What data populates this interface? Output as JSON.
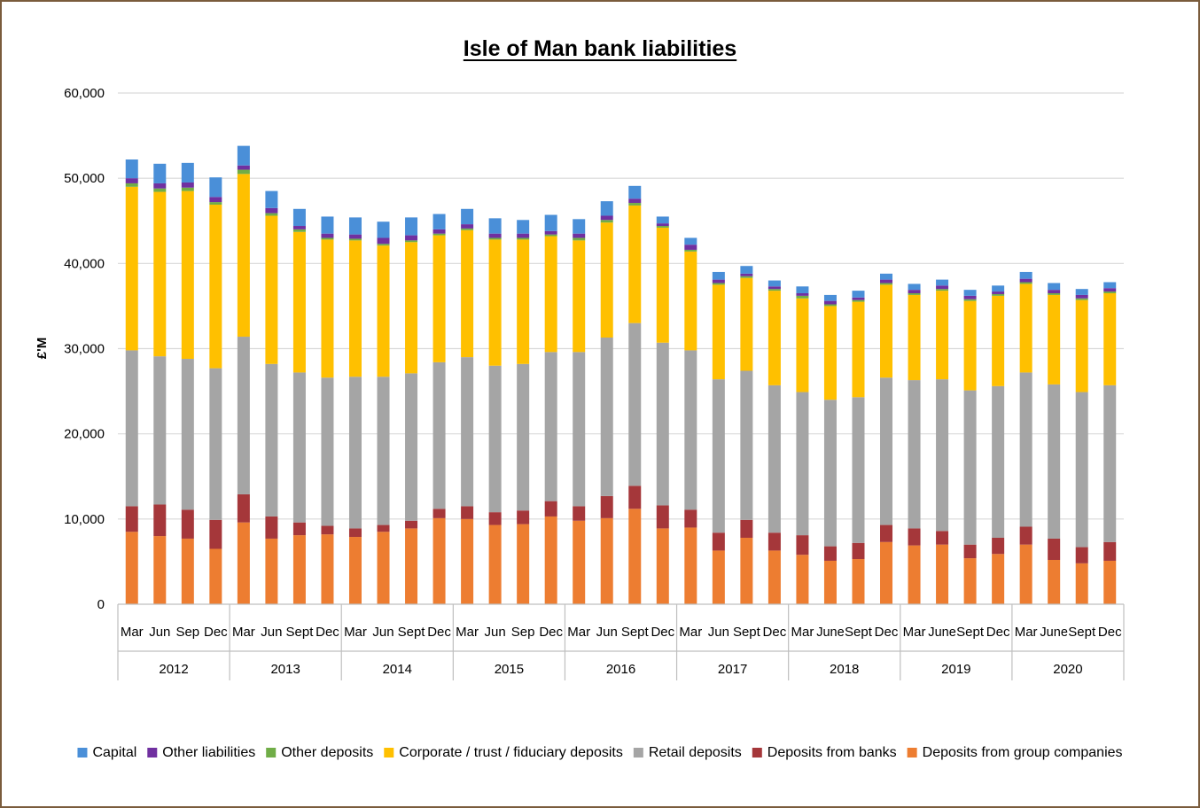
{
  "chart_data": {
    "type": "bar",
    "stacked": true,
    "title": "Isle of Man bank liabilities",
    "ylabel": "£'M",
    "xlabel": "",
    "ylim": [
      0,
      60000
    ],
    "yticks": [
      0,
      10000,
      20000,
      30000,
      40000,
      50000,
      60000
    ],
    "ytick_labels": [
      "0",
      "10,000",
      "20,000",
      "30,000",
      "40,000",
      "50,000",
      "60,000"
    ],
    "grid": true,
    "legend_position": "bottom",
    "years": [
      {
        "label": "2012",
        "count": 4
      },
      {
        "label": "2013",
        "count": 4
      },
      {
        "label": "2014",
        "count": 4
      },
      {
        "label": "2015",
        "count": 4
      },
      {
        "label": "2016",
        "count": 4
      },
      {
        "label": "2017",
        "count": 4
      },
      {
        "label": "2018",
        "count": 4
      },
      {
        "label": "2019",
        "count": 4
      },
      {
        "label": "2020",
        "count": 4
      }
    ],
    "categories": [
      "Mar",
      "Jun",
      "Sep",
      "Dec",
      "Mar",
      "Jun",
      "Sept",
      "Dec",
      "Mar",
      "Jun",
      "Sept",
      "Dec",
      "Mar",
      "Jun",
      "Sep",
      "Dec",
      "Mar",
      "Jun",
      "Sept",
      "Dec",
      "Mar",
      "Jun",
      "Sept",
      "Dec",
      "Mar",
      "June",
      "Sept",
      "Dec",
      "Mar",
      "June",
      "Sept",
      "Dec",
      "Mar",
      "June",
      "Sept",
      "Dec"
    ],
    "series": [
      {
        "name": "Deposits from group companies",
        "color": "#ed7d31",
        "values": [
          8500,
          8000,
          7700,
          6500,
          9600,
          7700,
          8100,
          8200,
          7900,
          8500,
          8900,
          10100,
          10000,
          9300,
          9400,
          10300,
          9800,
          10100,
          11200,
          8900,
          9000,
          6300,
          7800,
          6300,
          5800,
          5100,
          5300,
          7300,
          6900,
          7000,
          5400,
          5900,
          7000,
          5200,
          4800,
          5100
        ]
      },
      {
        "name": "Deposits from banks",
        "color": "#a5373a",
        "values": [
          3000,
          3700,
          3400,
          3400,
          3300,
          2600,
          1500,
          1000,
          1000,
          800,
          900,
          1100,
          1500,
          1500,
          1600,
          1800,
          1700,
          2600,
          2700,
          2700,
          2100,
          2100,
          2100,
          2100,
          2300,
          1700,
          1900,
          2000,
          2000,
          1600,
          1600,
          1900,
          2100,
          2500,
          1900,
          2200
        ]
      },
      {
        "name": "Retail deposits",
        "color": "#a5a5a5",
        "values": [
          18300,
          17400,
          17700,
          17800,
          18500,
          17900,
          17600,
          17400,
          17800,
          17400,
          17300,
          17200,
          17500,
          17200,
          17200,
          17500,
          18100,
          18600,
          19100,
          19100,
          18700,
          18000,
          17500,
          17300,
          16800,
          17200,
          17100,
          17300,
          17400,
          17800,
          18100,
          17800,
          18100,
          18100,
          18200,
          18400
        ]
      },
      {
        "name": "Corporate / trust / fiduciary deposits",
        "color": "#ffc000",
        "values": [
          19200,
          19300,
          19700,
          19200,
          19100,
          17400,
          16500,
          16200,
          16000,
          15400,
          15400,
          14900,
          14900,
          14800,
          14600,
          13600,
          13100,
          13500,
          13800,
          13500,
          11600,
          11100,
          10900,
          11100,
          11000,
          11000,
          11200,
          10900,
          10000,
          10400,
          10500,
          10600,
          10400,
          10500,
          10800,
          10800
        ]
      },
      {
        "name": "Other deposits",
        "color": "#70ad47",
        "values": [
          400,
          400,
          400,
          300,
          500,
          300,
          300,
          200,
          200,
          200,
          200,
          200,
          200,
          200,
          200,
          200,
          300,
          300,
          300,
          200,
          200,
          200,
          200,
          200,
          300,
          200,
          200,
          200,
          200,
          200,
          200,
          200,
          200,
          200,
          200,
          200
        ]
      },
      {
        "name": "Other liabilities",
        "color": "#7030a0",
        "values": [
          600,
          600,
          600,
          600,
          500,
          600,
          400,
          500,
          500,
          700,
          600,
          500,
          500,
          500,
          500,
          400,
          500,
          500,
          500,
          300,
          600,
          400,
          300,
          300,
          300,
          400,
          300,
          400,
          400,
          400,
          400,
          300,
          400,
          400,
          400,
          400
        ]
      },
      {
        "name": "Capital",
        "color": "#4a8fd8",
        "values": [
          2200,
          2300,
          2300,
          2300,
          2300,
          2000,
          2000,
          2000,
          2000,
          1900,
          2100,
          1800,
          1800,
          1800,
          1600,
          1900,
          1700,
          1700,
          1500,
          800,
          800,
          900,
          900,
          700,
          800,
          700,
          800,
          700,
          700,
          700,
          700,
          700,
          800,
          800,
          700,
          700
        ]
      }
    ],
    "legend_order": [
      "Capital",
      "Other liabilities",
      "Other deposits",
      "Corporate / trust / fiduciary deposits",
      "Retail deposits",
      "Deposits from banks",
      "Deposits from group companies"
    ]
  }
}
